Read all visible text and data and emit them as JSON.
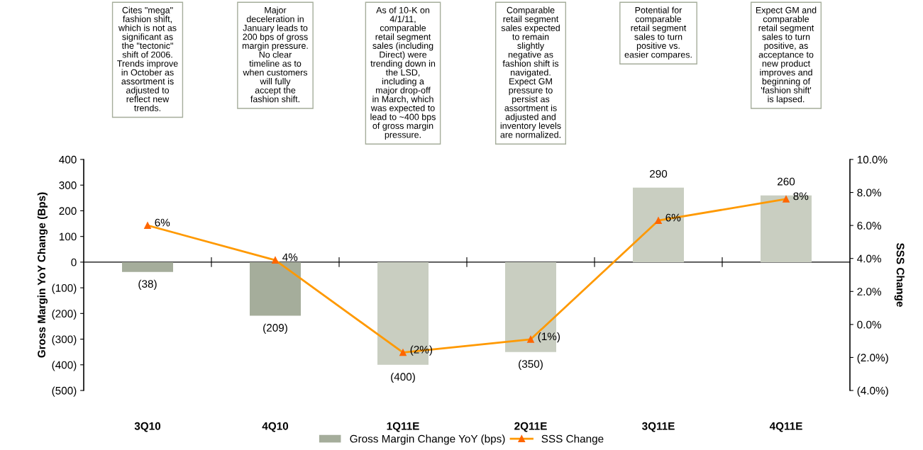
{
  "chart_data": {
    "type": "bar",
    "categories": [
      "3Q10",
      "4Q10",
      "1Q11E",
      "2Q11E",
      "3Q11E",
      "4Q11E"
    ],
    "ylabel": "Gross Margin YoY Change (Bps)",
    "y2label": "SSS Change",
    "series": [
      {
        "name": "Gross Margin Change YoY (bps)",
        "color": "#a5ad9b",
        "colors": [
          "#a5ad9b",
          "#a5ad9b",
          "#c9cec1",
          "#c9cec1",
          "#c9cec1",
          "#c9cec1"
        ],
        "values": [
          -38,
          -209,
          -400,
          -350,
          290,
          260
        ],
        "value_labels": [
          "(38)",
          "(209)",
          "(400)",
          "(350)",
          "290",
          "260"
        ]
      },
      {
        "name": "SSS Change",
        "type": "line",
        "axis": "y2",
        "color": "#ff9900",
        "marker": "triangle",
        "values": [
          6.0,
          3.9,
          -1.7,
          -0.9,
          6.3,
          7.6
        ],
        "value_labels": [
          "6%",
          "4%",
          "(2%)",
          "(1%)",
          "6%",
          "8%"
        ]
      }
    ],
    "ylim": [
      -500,
      400
    ],
    "yticks": [
      {
        "value": -500,
        "label": "(500)"
      },
      {
        "value": -400,
        "label": "(400)"
      },
      {
        "value": -300,
        "label": "(300)"
      },
      {
        "value": -200,
        "label": "(200)"
      },
      {
        "value": -100,
        "label": "(100)"
      },
      0,
      100,
      200,
      300,
      400
    ],
    "y2lim": [
      -4,
      10
    ],
    "y2ticks": [
      {
        "value": -4,
        "label": "(4.0%)"
      },
      {
        "value": -2,
        "label": "(2.0%)"
      },
      {
        "value": 0,
        "label": "0.0%"
      },
      {
        "value": 2,
        "label": "2.0%"
      },
      {
        "value": 4,
        "label": "4.0%"
      },
      {
        "value": 6,
        "label": "6.0%"
      },
      {
        "value": 8,
        "label": "8.0%"
      },
      {
        "value": 10,
        "label": "10.0%"
      }
    ],
    "legend": "bottom",
    "annotations": [
      "Cites \"mega\" fashion shift, which is not as significant as the \"tectonic\" shift of 2006. Trends improve in October as assortment is adjusted to reflect new trends.",
      "Major deceleration in January leads to 200 bps of gross margin pressure.  No clear timeline as to when customers will fully accept the fashion shift.",
      "As of 10-K on 4/1/11, comparable retail segment sales (including Direct) were trending down in the LSD, including a major drop-off in March, which was expected to lead to ~400 bps of gross margin pressure.",
      "Comparable retail segment sales expected to remain slightly negative as fashion shift is navigated. Expect GM pressure to persist as assortment is adjusted and inventory levels are normalized.",
      "Potential for comparable retail segment sales to turn positive vs. easier compares.",
      "Expect GM and comparable retail segment sales to turn positive, as acceptance to new product improves and beginning of 'fashion shift' is lapsed."
    ]
  }
}
